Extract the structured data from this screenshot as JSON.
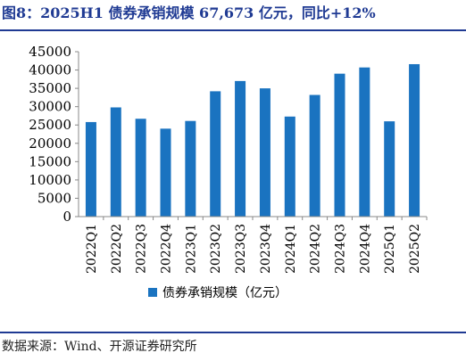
{
  "title": "图8：2025H1 债券承销规模 67,673 亿元，同比+12%",
  "source": "数据来源：Wind、开源证券研究所",
  "colors": {
    "bar": "#1a73c0",
    "title": "#1f3a93"
  },
  "chart_data": {
    "type": "bar",
    "categories": [
      "2022Q1",
      "2022Q2",
      "2022Q3",
      "2022Q4",
      "2023Q1",
      "2023Q2",
      "2023Q3",
      "2023Q4",
      "2024Q1",
      "2024Q2",
      "2024Q3",
      "2024Q4",
      "2025Q1",
      "2025Q2"
    ],
    "series": [
      {
        "name": "债券承销规模（亿元）",
        "values": [
          25800,
          29800,
          26700,
          24000,
          26100,
          34200,
          37000,
          35000,
          27300,
          33200,
          39000,
          40700,
          26000,
          41600
        ]
      }
    ],
    "ylim": [
      0,
      45000
    ],
    "yticks": [
      0,
      5000,
      10000,
      15000,
      20000,
      25000,
      30000,
      35000,
      40000,
      45000
    ],
    "grid": false,
    "legend": "bottom"
  }
}
